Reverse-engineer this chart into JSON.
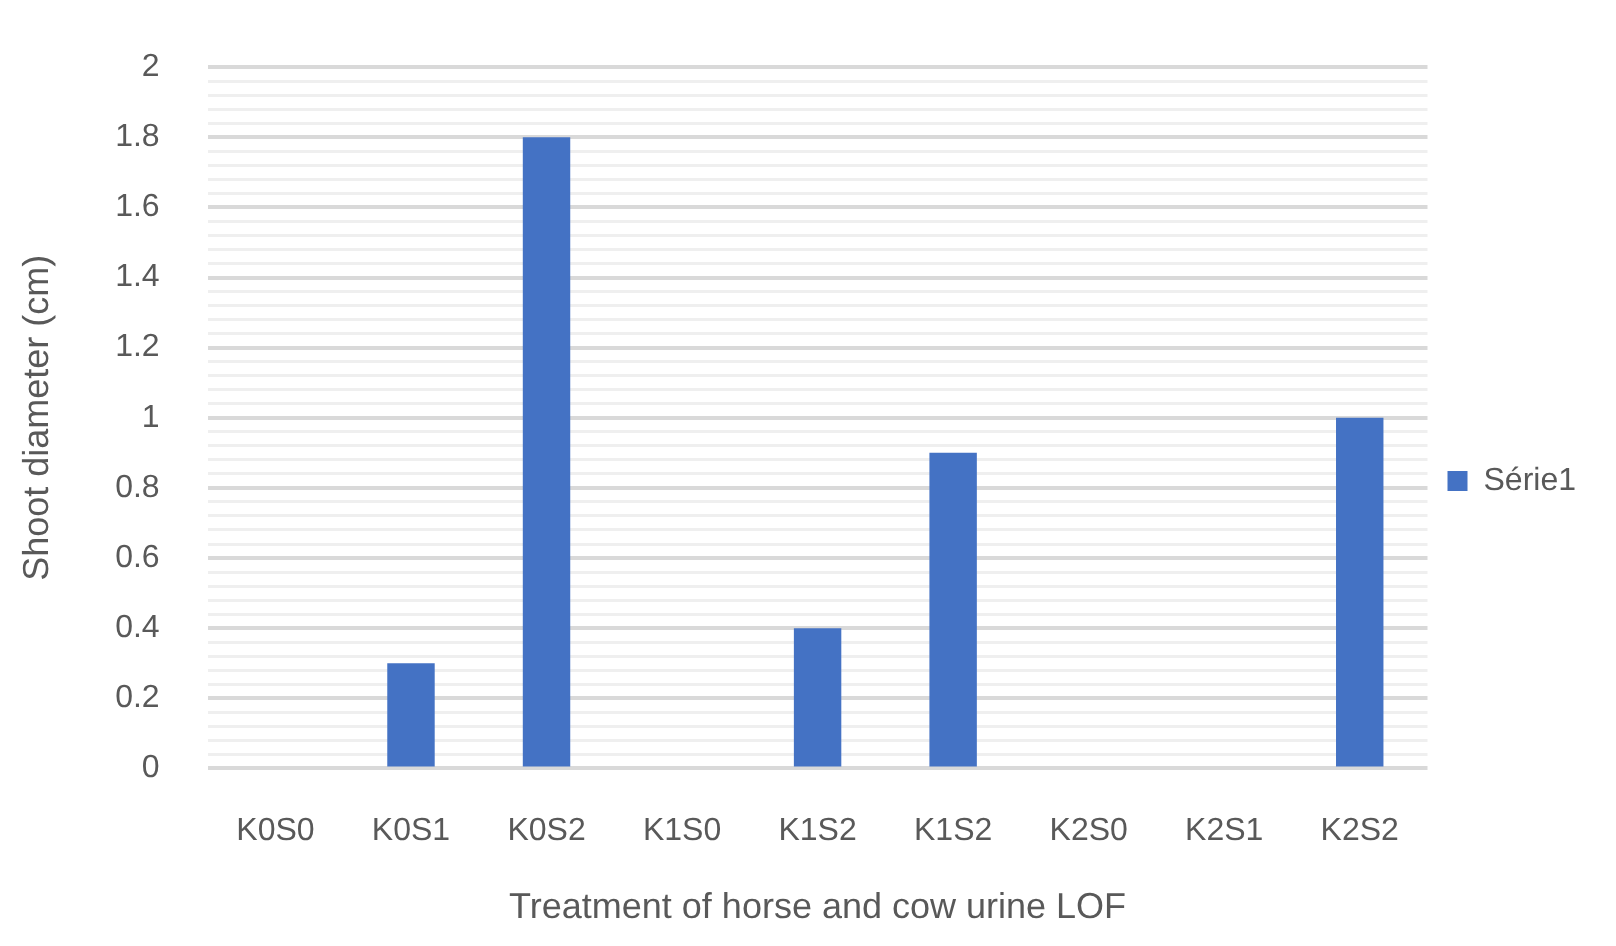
{
  "chart_data": {
    "type": "bar",
    "xlabel": "Treatment of horse and cow urine LOF",
    "ylabel": "Shoot diameter (cm)",
    "categories": [
      "K0S0",
      "K0S1",
      "K0S2",
      "K1S0",
      "K1S2",
      "K1S2",
      "K2S0",
      "K2S1",
      "K2S2"
    ],
    "series": [
      {
        "name": "Série1",
        "color": "#4472c4",
        "values": [
          0,
          0.3,
          1.8,
          0,
          0.4,
          0.9,
          0,
          0,
          1
        ]
      }
    ],
    "ylim": [
      0,
      2
    ],
    "yticks": [
      0,
      {
        "value": 0.04,
        "label": null
      },
      {
        "value": 0.08,
        "label": null
      },
      {
        "value": 0.12,
        "label": null
      },
      {
        "value": 0.16,
        "label": null
      },
      {
        "value": 0.2,
        "label": "0.2"
      },
      {
        "value": 0.24,
        "label": null
      },
      {
        "value": 0.28,
        "label": null
      },
      {
        "value": 0.32,
        "label": null
      },
      {
        "value": 0.36,
        "label": null
      },
      {
        "value": 0.4,
        "label": "0.4"
      },
      {
        "value": 0.44,
        "label": null
      },
      {
        "value": 0.48,
        "label": null
      },
      {
        "value": 0.52,
        "label": null
      },
      {
        "value": 0.56,
        "label": null
      },
      {
        "value": 0.6,
        "label": "0.6"
      },
      {
        "value": 0.64,
        "label": null
      },
      {
        "value": 0.68,
        "label": null
      },
      {
        "value": 0.72,
        "label": null
      },
      {
        "value": 0.76,
        "label": null
      },
      {
        "value": 0.8,
        "label": "0.8"
      },
      {
        "value": 0.84,
        "label": null
      },
      {
        "value": 0.88,
        "label": null
      },
      {
        "value": 0.92,
        "label": null
      },
      {
        "value": 0.96,
        "label": null
      },
      1,
      {
        "value": 1.04,
        "label": null
      },
      {
        "value": 1.08,
        "label": null
      },
      {
        "value": 1.12,
        "label": null
      },
      {
        "value": 1.16,
        "label": null
      },
      {
        "value": 1.2,
        "label": "1.2"
      },
      {
        "value": 1.24,
        "label": null
      },
      {
        "value": 1.28,
        "label": null
      },
      {
        "value": 1.32,
        "label": null
      },
      {
        "value": 1.36,
        "label": null
      },
      {
        "value": 1.4,
        "label": "1.4"
      },
      {
        "value": 1.44,
        "label": null
      },
      {
        "value": 1.48,
        "label": null
      },
      {
        "value": 1.52,
        "label": null
      },
      {
        "value": 1.56,
        "label": null
      },
      {
        "value": 1.6,
        "label": "1.6"
      },
      {
        "value": 1.64,
        "label": null
      },
      {
        "value": 1.68,
        "label": null
      },
      {
        "value": 1.72,
        "label": null
      },
      {
        "value": 1.76,
        "label": null
      },
      {
        "value": 1.8,
        "label": "1.8"
      },
      {
        "value": 1.84,
        "label": null
      },
      {
        "value": 1.88,
        "label": null
      },
      {
        "value": 1.92,
        "label": null
      },
      {
        "value": 1.96,
        "label": null
      },
      2
    ],
    "grid": "y",
    "legend": "right"
  }
}
